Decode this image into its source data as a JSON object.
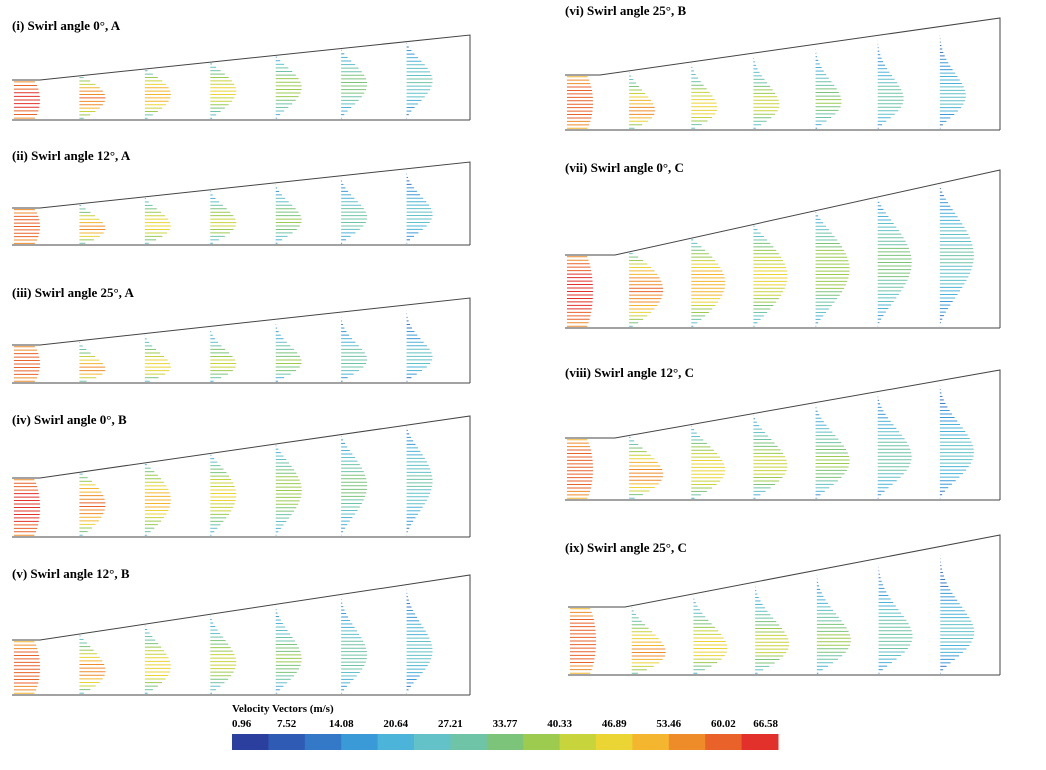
{
  "panels": [
    {
      "title": "(i) Swirl angle 0°, A"
    },
    {
      "title": "(ii) Swirl angle 12°, A"
    },
    {
      "title": "(iii) Swirl angle 25°, A"
    },
    {
      "title": "(iv) Swirl angle 0°, B"
    },
    {
      "title": "(v) Swirl angle 12°, B"
    },
    {
      "title": "(vi) Swirl angle 25°, B"
    },
    {
      "title": "(vii) Swirl angle 0°, C"
    },
    {
      "title": "(viii) Swirl angle 12°, C"
    },
    {
      "title": "(ix) Swirl angle 25°, C"
    }
  ],
  "colorbar": {
    "title": "Velocity Vectors (m/s)",
    "ticks": [
      0.96,
      7.52,
      14.08,
      20.64,
      27.21,
      33.77,
      40.33,
      46.89,
      53.46,
      60.02,
      66.58
    ],
    "colors": [
      "#2b3f9e",
      "#2f5bb5",
      "#3478c8",
      "#3a9ad8",
      "#4bb4d8",
      "#62c2c8",
      "#6fc4a8",
      "#7cc47a",
      "#9ccb50",
      "#c8d43c",
      "#ead534",
      "#f3b62e",
      "#ef8c2a",
      "#e9622a",
      "#e2302a"
    ]
  }
}
